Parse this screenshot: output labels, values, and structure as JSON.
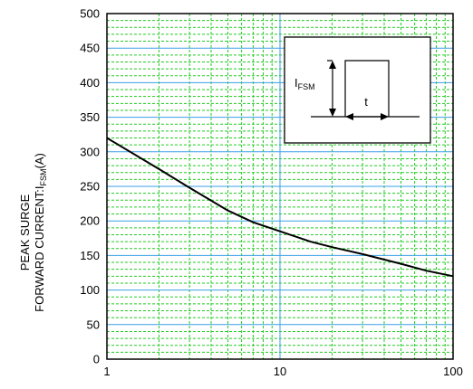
{
  "chart_data": {
    "type": "line",
    "title": "",
    "xlabel": "",
    "ylabel_line1": "PEAK SURGE",
    "ylabel_line2_main": "FORWARD CURRENT:I",
    "ylabel_line2_sub": "FSM",
    "ylabel_line2_tail": "(A)",
    "x_scale": "log",
    "xlim": [
      1,
      100
    ],
    "ylim": [
      0,
      500
    ],
    "x_ticks": [
      1,
      10,
      100
    ],
    "x_tick_labels": [
      "1",
      "10",
      "100"
    ],
    "y_ticks": [
      0,
      50,
      100,
      150,
      200,
      250,
      300,
      350,
      400,
      450,
      500
    ],
    "y_tick_labels": [
      "0",
      "50",
      "100",
      "150",
      "200",
      "250",
      "300",
      "350",
      "400",
      "450",
      "500"
    ],
    "grid": true,
    "colors": {
      "major_grid": "#3aa0e8",
      "minor_grid": "#22cc22",
      "curve": "#000000",
      "frame": "#000000"
    },
    "series": [
      {
        "x": [
          1,
          2,
          3,
          5,
          7,
          10,
          15,
          20,
          30,
          50,
          70,
          100
        ],
        "y": [
          320,
          275,
          248,
          215,
          198,
          185,
          170,
          162,
          152,
          138,
          128,
          120
        ]
      }
    ],
    "inset": {
      "label_main": "I",
      "label_sub": "FSM",
      "label_t": "t"
    }
  }
}
